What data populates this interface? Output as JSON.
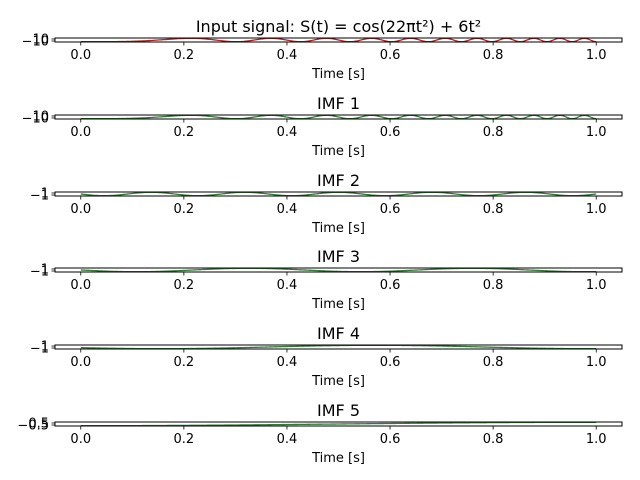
{
  "chart_data": [
    {
      "type": "line",
      "title": "Input signal: S(t) = cos(22πt²) + 6t²",
      "xlabel": "Time [s]",
      "ylabel": "",
      "xlim": [
        -0.05,
        1.05
      ],
      "ylim": [
        -10,
        10
      ],
      "xticks": [
        "0.0",
        "0.2",
        "0.4",
        "0.6",
        "0.8",
        "1.0"
      ],
      "yticks": [
        "−10",
        "10"
      ],
      "line_color": "#b22222",
      "grid": false
    },
    {
      "type": "line",
      "title": "IMF 1",
      "xlabel": "Time [s]",
      "ylabel": "",
      "xlim": [
        -0.05,
        1.05
      ],
      "ylim": [
        -10,
        10
      ],
      "xticks": [
        "0.0",
        "0.2",
        "0.4",
        "0.6",
        "0.8",
        "1.0"
      ],
      "yticks": [
        "−10",
        "10"
      ],
      "line_color": "#2e7d32",
      "grid": false
    },
    {
      "type": "line",
      "title": "IMF 2",
      "xlabel": "Time [s]",
      "ylabel": "",
      "xlim": [
        -0.05,
        1.05
      ],
      "ylim": [
        -1,
        1
      ],
      "xticks": [
        "0.0",
        "0.2",
        "0.4",
        "0.6",
        "0.8",
        "1.0"
      ],
      "yticks": [
        "−1",
        "1"
      ],
      "line_color": "#2e7d32",
      "grid": false
    },
    {
      "type": "line",
      "title": "IMF 3",
      "xlabel": "Time [s]",
      "ylabel": "",
      "xlim": [
        -0.05,
        1.05
      ],
      "ylim": [
        -1,
        1
      ],
      "xticks": [
        "0.0",
        "0.2",
        "0.4",
        "0.6",
        "0.8",
        "1.0"
      ],
      "yticks": [
        "−1",
        "1"
      ],
      "line_color": "#2e7d32",
      "grid": false
    },
    {
      "type": "line",
      "title": "IMF 4",
      "xlabel": "Time [s]",
      "ylabel": "",
      "xlim": [
        -0.05,
        1.05
      ],
      "ylim": [
        -1,
        1
      ],
      "xticks": [
        "0.0",
        "0.2",
        "0.4",
        "0.6",
        "0.8",
        "1.0"
      ],
      "yticks": [
        "−1",
        "1"
      ],
      "line_color": "#2e7d32",
      "grid": false
    },
    {
      "type": "line",
      "title": "IMF 5",
      "xlabel": "Time [s]",
      "ylabel": "",
      "xlim": [
        -0.05,
        1.05
      ],
      "ylim": [
        -0.5,
        0.5
      ],
      "xticks": [
        "0.0",
        "0.2",
        "0.4",
        "0.6",
        "0.8",
        "1.0"
      ],
      "yticks": [
        "−0.5",
        "0.5"
      ],
      "line_color": "#2e7d32",
      "grid": false
    }
  ]
}
